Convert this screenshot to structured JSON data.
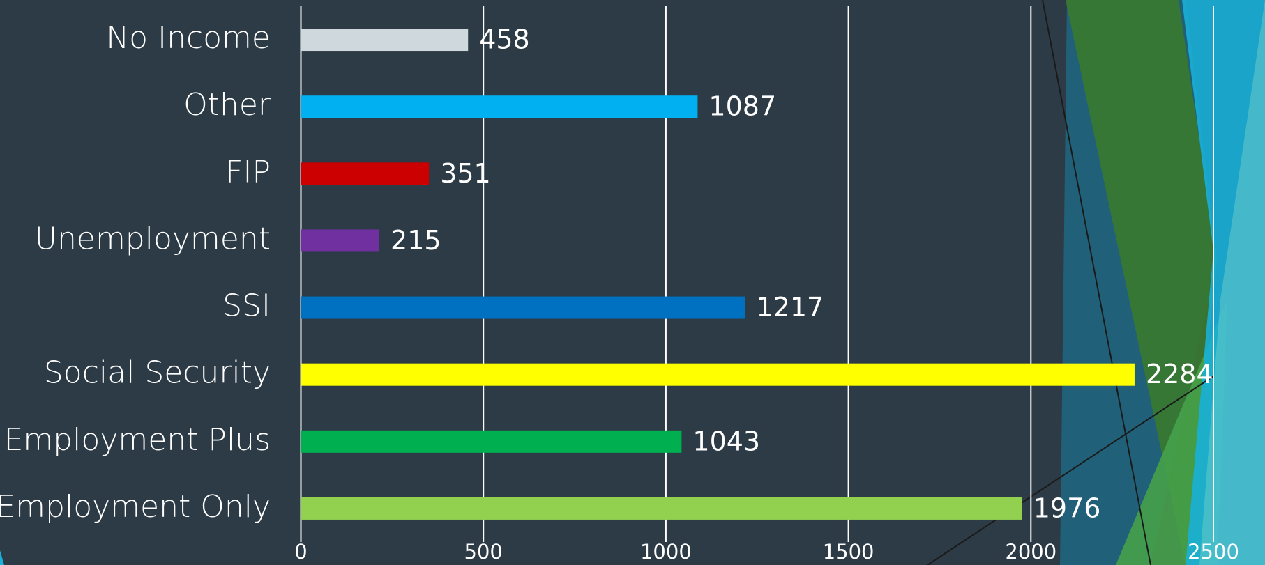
{
  "chart_data": {
    "type": "bar",
    "orientation": "horizontal",
    "categories": [
      "No Income",
      "Other",
      "FIP",
      "Unemployment",
      "SSI",
      "Social Security",
      "Employment Plus",
      "Employment Only"
    ],
    "values": [
      458,
      1087,
      351,
      215,
      1217,
      2284,
      1043,
      1976
    ],
    "colors": [
      "#cfd8dc",
      "#00b0f0",
      "#cc0000",
      "#7030a0",
      "#0070c0",
      "#ffff00",
      "#00b050",
      "#92d050"
    ],
    "xlim": [
      0,
      2500
    ],
    "xticks": [
      0,
      500,
      1000,
      1500,
      2000,
      2500
    ],
    "grid": true
  }
}
